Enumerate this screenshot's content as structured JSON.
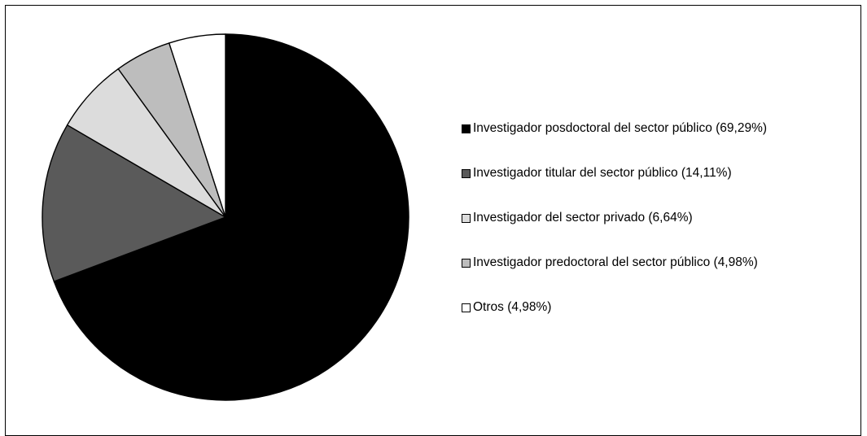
{
  "chart_data": {
    "type": "pie",
    "title": "",
    "categories": [
      "Investigador posdoctoral del sector público (69,29%)",
      "Investigador titular del sector público (14,11%)",
      "Investigador del sector privado (6,64%)",
      "Investigador predoctoral del sector público (4,98%)",
      "Otros (4,98%)"
    ],
    "values": [
      69.29,
      14.11,
      6.64,
      4.98,
      4.98
    ],
    "colors": [
      "#000000",
      "#5a5a5a",
      "#dcdcdc",
      "#bdbdbd",
      "#ffffff"
    ],
    "legend": {
      "position": "right",
      "entries": [
        "Investigador posdoctoral del sector público (69,29%)",
        "Investigador titular del sector público (14,11%)",
        "Investigador del sector privado (6,64%)",
        "Investigador predoctoral del sector público (4,98%)",
        "Otros (4,98%)"
      ]
    },
    "start_angle": "12 o'clock",
    "direction": "clockwise",
    "outline_color": "#000000",
    "background": "#ffffff"
  }
}
